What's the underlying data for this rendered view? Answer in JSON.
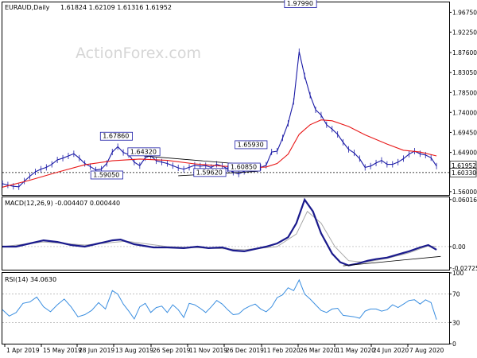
{
  "header": {
    "symbol": "EURAUD,Daily",
    "ohlc": "1.61824 1.62109 1.61316 1.61952"
  },
  "watermark": "ActionForex.com",
  "colors": {
    "price": "#1a1aa6",
    "ma": "#e81818",
    "macd": "#1a1a8c",
    "signal": "#a8a8a8",
    "rsi": "#3a8ee0",
    "trendline": "#000000",
    "current_price_bg": "#ffffff",
    "level_bg": "#ffffff"
  },
  "chart_data": [
    {
      "type": "line",
      "panel": "price",
      "title": "EURAUD,Daily",
      "ylim": [
        1.5525,
        1.99
      ],
      "y_ticks": [
        "1.96750",
        "1.92250",
        "1.87600",
        "1.83050",
        "1.78500",
        "1.74000",
        "1.69450",
        "1.64900",
        "1.60330",
        "1.56000"
      ],
      "y_tick_values": [
        1.9675,
        1.9225,
        1.876,
        1.8305,
        1.785,
        1.74,
        1.6945,
        1.649,
        1.6033,
        1.56
      ],
      "x_ticks": [
        "1 Apr 2019",
        "15 May 2019",
        "28 Jun 2019",
        "13 Aug 2019",
        "26 Sep 2019",
        "11 Nov 2019",
        "26 Dec 2019",
        "11 Feb 2020",
        "26 Mar 2020",
        "11 May 2020",
        "24 Jun 2020",
        "7 Aug 2020"
      ],
      "series": [
        {
          "values": [
            [
              0,
              1.578
            ],
            [
              4,
              1.575
            ],
            [
              8,
              1.572
            ],
            [
              12,
              1.571
            ],
            [
              16,
              1.584
            ],
            [
              20,
              1.595
            ],
            [
              24,
              1.605
            ],
            [
              28,
              1.611
            ],
            [
              32,
              1.615
            ],
            [
              36,
              1.622
            ],
            [
              40,
              1.632
            ],
            [
              44,
              1.636
            ],
            [
              48,
              1.641
            ],
            [
              52,
              1.646
            ],
            [
              56,
              1.636
            ],
            [
              60,
              1.624
            ],
            [
              64,
              1.617
            ],
            [
              68,
              1.609
            ],
            [
              72,
              1.611
            ],
            [
              76,
              1.624
            ],
            [
              80,
              1.65
            ],
            [
              84,
              1.662
            ],
            [
              88,
              1.649
            ],
            [
              92,
              1.644
            ],
            [
              96,
              1.627
            ],
            [
              100,
              1.619
            ],
            [
              104,
              1.637
            ],
            [
              108,
              1.642
            ],
            [
              112,
              1.63
            ],
            [
              116,
              1.627
            ],
            [
              120,
              1.624
            ],
            [
              124,
              1.619
            ],
            [
              128,
              1.614
            ],
            [
              132,
              1.611
            ],
            [
              136,
              1.615
            ],
            [
              140,
              1.62
            ],
            [
              144,
              1.618
            ],
            [
              148,
              1.619
            ],
            [
              152,
              1.615
            ],
            [
              156,
              1.622
            ],
            [
              160,
              1.618
            ],
            [
              164,
              1.612
            ],
            [
              168,
              1.604
            ],
            [
              172,
              1.6
            ],
            [
              176,
              1.606
            ],
            [
              180,
              1.618
            ],
            [
              184,
              1.618
            ],
            [
              188,
              1.615
            ],
            [
              192,
              1.62
            ],
            [
              196,
              1.65
            ],
            [
              200,
              1.652
            ],
            [
              204,
              1.682
            ],
            [
              208,
              1.715
            ],
            [
              212,
              1.765
            ],
            [
              216,
              1.878
            ],
            [
              220,
              1.823
            ],
            [
              224,
              1.779
            ],
            [
              228,
              1.746
            ],
            [
              232,
              1.734
            ],
            [
              236,
              1.712
            ],
            [
              240,
              1.702
            ],
            [
              244,
              1.69
            ],
            [
              248,
              1.672
            ],
            [
              252,
              1.656
            ],
            [
              256,
              1.648
            ],
            [
              260,
              1.635
            ],
            [
              264,
              1.615
            ],
            [
              268,
              1.618
            ],
            [
              272,
              1.625
            ],
            [
              276,
              1.631
            ],
            [
              280,
              1.622
            ],
            [
              284,
              1.622
            ],
            [
              288,
              1.627
            ],
            [
              292,
              1.635
            ],
            [
              296,
              1.645
            ],
            [
              300,
              1.652
            ],
            [
              304,
              1.646
            ],
            [
              308,
              1.643
            ],
            [
              312,
              1.637
            ],
            [
              316,
              1.618
            ]
          ]
        },
        {
          "values": [
            [
              0,
              1.57
            ],
            [
              20,
              1.586
            ],
            [
              40,
              1.604
            ],
            [
              60,
              1.621
            ],
            [
              80,
              1.63
            ],
            [
              100,
              1.634
            ],
            [
              120,
              1.631
            ],
            [
              140,
              1.623
            ],
            [
              160,
              1.618
            ],
            [
              180,
              1.614
            ],
            [
              192,
              1.616
            ],
            [
              200,
              1.624
            ],
            [
              208,
              1.645
            ],
            [
              216,
              1.69
            ],
            [
              224,
              1.712
            ],
            [
              232,
              1.723
            ],
            [
              240,
              1.721
            ],
            [
              252,
              1.708
            ],
            [
              264,
              1.689
            ],
            [
              280,
              1.668
            ],
            [
              292,
              1.654
            ],
            [
              304,
              1.65
            ],
            [
              316,
              1.641
            ]
          ]
        }
      ],
      "labels": [
        "1.97990",
        "1.67860",
        "1.64320",
        "1.65930",
        "1.59050",
        "1.59620",
        "1.60850"
      ],
      "label_values": [
        [
          217,
          1.9799
        ],
        [
          83,
          1.6786
        ],
        [
          103,
          1.6432
        ],
        [
          181,
          1.6593
        ],
        [
          76,
          1.5905
        ],
        [
          151,
          1.5962
        ],
        [
          176,
          1.6085
        ]
      ],
      "levels": [
        "1.61952",
        "1.60330"
      ],
      "level_values": [
        1.61952,
        1.6033
      ]
    },
    {
      "type": "line",
      "panel": "macd",
      "title": "MACD(12,26,9) -0.004407 0.000440",
      "ylim": [
        -0.0295,
        0.063
      ],
      "y_ticks": [
        "0.060165",
        "0.00",
        "-0.02725"
      ],
      "y_tick_values": [
        0.060165,
        0.0,
        -0.02725
      ],
      "series": [
        {
          "values": [
            [
              0,
              0.0
            ],
            [
              10,
              0.0
            ],
            [
              20,
              0.004
            ],
            [
              30,
              0.008
            ],
            [
              40,
              0.006
            ],
            [
              50,
              0.002
            ],
            [
              60,
              0.0
            ],
            [
              70,
              0.004
            ],
            [
              80,
              0.008
            ],
            [
              86,
              0.009
            ],
            [
              96,
              0.003
            ],
            [
              110,
              -0.001
            ],
            [
              120,
              -0.001
            ],
            [
              132,
              -0.002
            ],
            [
              142,
              0.0
            ],
            [
              150,
              -0.002
            ],
            [
              160,
              -0.001
            ],
            [
              168,
              -0.005
            ],
            [
              176,
              -0.006
            ],
            [
              184,
              -0.003
            ],
            [
              192,
              0.0
            ],
            [
              200,
              0.004
            ],
            [
              208,
              0.012
            ],
            [
              214,
              0.03
            ],
            [
              220,
              0.06
            ],
            [
              226,
              0.045
            ],
            [
              232,
              0.017
            ],
            [
              240,
              -0.009
            ],
            [
              246,
              -0.02
            ],
            [
              252,
              -0.024
            ],
            [
              258,
              -0.022
            ],
            [
              266,
              -0.018
            ],
            [
              272,
              -0.016
            ],
            [
              280,
              -0.014
            ],
            [
              288,
              -0.01
            ],
            [
              296,
              -0.006
            ],
            [
              304,
              -0.001
            ],
            [
              310,
              0.002
            ],
            [
              316,
              -0.004
            ]
          ]
        },
        {
          "values": [
            [
              0,
              0.0
            ],
            [
              30,
              0.006
            ],
            [
              60,
              0.002
            ],
            [
              90,
              0.007
            ],
            [
              120,
              0.0
            ],
            [
              150,
              -0.002
            ],
            [
              176,
              -0.004
            ],
            [
              200,
              0.0
            ],
            [
              214,
              0.016
            ],
            [
              222,
              0.045
            ],
            [
              232,
              0.03
            ],
            [
              242,
              0.0
            ],
            [
              252,
              -0.018
            ],
            [
              264,
              -0.02
            ],
            [
              280,
              -0.015
            ],
            [
              296,
              -0.008
            ],
            [
              310,
              0.001
            ],
            [
              316,
              0.0
            ]
          ]
        },
        {
          "values": [
            [
              248,
              -0.0245
            ],
            [
              319,
              -0.0125
            ]
          ]
        }
      ]
    },
    {
      "type": "line",
      "panel": "rsi",
      "title": "RSI(14) 34.0630",
      "ylim": [
        0,
        100
      ],
      "y_ticks": [
        "100",
        "70",
        "30",
        "0"
      ],
      "y_tick_values": [
        100,
        70,
        30,
        0
      ],
      "series": [
        {
          "values": [
            [
              0,
              48
            ],
            [
              5,
              39
            ],
            [
              10,
              44
            ],
            [
              15,
              57
            ],
            [
              20,
              59
            ],
            [
              25,
              66
            ],
            [
              30,
              52
            ],
            [
              35,
              45
            ],
            [
              40,
              55
            ],
            [
              45,
              63
            ],
            [
              50,
              52
            ],
            [
              55,
              38
            ],
            [
              60,
              41
            ],
            [
              65,
              47
            ],
            [
              70,
              58
            ],
            [
              75,
              49
            ],
            [
              80,
              75
            ],
            [
              84,
              70
            ],
            [
              88,
              56
            ],
            [
              92,
              46
            ],
            [
              96,
              35
            ],
            [
              100,
              52
            ],
            [
              104,
              57
            ],
            [
              108,
              44
            ],
            [
              112,
              51
            ],
            [
              116,
              53
            ],
            [
              120,
              44
            ],
            [
              124,
              55
            ],
            [
              128,
              48
            ],
            [
              132,
              37
            ],
            [
              136,
              57
            ],
            [
              140,
              55
            ],
            [
              144,
              50
            ],
            [
              148,
              44
            ],
            [
              152,
              52
            ],
            [
              156,
              61
            ],
            [
              160,
              56
            ],
            [
              164,
              48
            ],
            [
              168,
              41
            ],
            [
              172,
              42
            ],
            [
              176,
              49
            ],
            [
              180,
              53
            ],
            [
              184,
              56
            ],
            [
              188,
              49
            ],
            [
              192,
              45
            ],
            [
              196,
              52
            ],
            [
              200,
              65
            ],
            [
              204,
              69
            ],
            [
              208,
              79
            ],
            [
              212,
              75
            ],
            [
              216,
              90
            ],
            [
              220,
              70
            ],
            [
              224,
              63
            ],
            [
              228,
              55
            ],
            [
              232,
              47
            ],
            [
              236,
              44
            ],
            [
              240,
              49
            ],
            [
              244,
              50
            ],
            [
              248,
              40
            ],
            [
              252,
              39
            ],
            [
              256,
              38
            ],
            [
              260,
              36
            ],
            [
              264,
              46
            ],
            [
              268,
              49
            ],
            [
              272,
              49
            ],
            [
              276,
              46
            ],
            [
              280,
              48
            ],
            [
              284,
              55
            ],
            [
              288,
              51
            ],
            [
              292,
              56
            ],
            [
              296,
              61
            ],
            [
              300,
              62
            ],
            [
              304,
              56
            ],
            [
              308,
              62
            ],
            [
              312,
              58
            ],
            [
              316,
              34
            ]
          ]
        }
      ]
    }
  ]
}
